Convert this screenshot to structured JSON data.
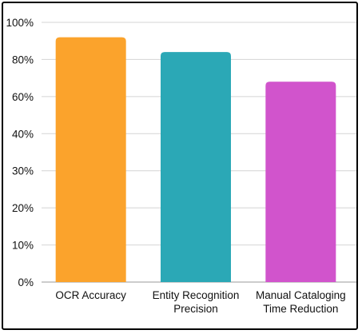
{
  "chart_data": {
    "type": "bar",
    "title": "",
    "xlabel": "",
    "ylabel": "",
    "categories": [
      [
        "OCR Accuracy"
      ],
      [
        "Entity Recognition",
        "Precision"
      ],
      [
        "Manual Cataloging",
        "Time Reduction"
      ]
    ],
    "values": [
      6.6,
      6.2,
      5.4
    ],
    "yticks": [
      {
        "value": 0,
        "label": "0%"
      },
      {
        "value": 1,
        "label": "10%"
      },
      {
        "value": 2,
        "label": "20%"
      },
      {
        "value": 3,
        "label": "30%"
      },
      {
        "value": 4,
        "label": "40%"
      },
      {
        "value": 5,
        "label": "60%"
      },
      {
        "value": 6,
        "label": "80%"
      },
      {
        "value": 7,
        "label": "100%"
      }
    ],
    "ylim": [
      0,
      7
    ],
    "colors": [
      "#FBA32C",
      "#2BA8B6",
      "#D154CC"
    ],
    "grid": true,
    "legend": "none"
  }
}
